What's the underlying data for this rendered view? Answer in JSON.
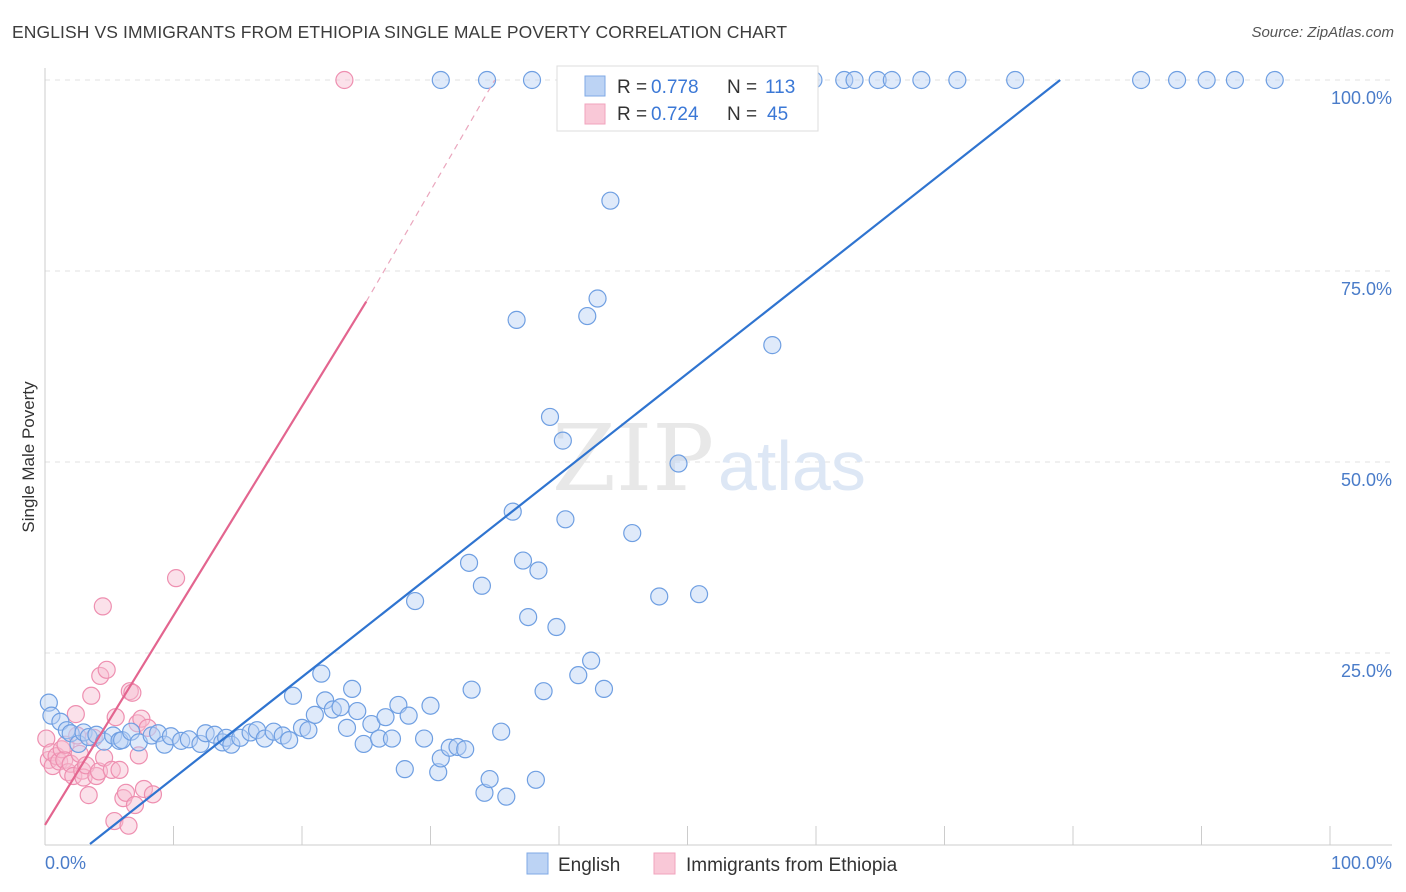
{
  "title": "ENGLISH VS IMMIGRANTS FROM ETHIOPIA SINGLE MALE POVERTY CORRELATION CHART",
  "source": "Source: ZipAtlas.com",
  "watermark": {
    "zip": "ZIP",
    "atlas": "atlas"
  },
  "chart_data": {
    "type": "scatter",
    "ylabel": "Single Male Poverty",
    "xlim": [
      0,
      100
    ],
    "ylim": [
      0,
      100
    ],
    "x_tick_labels": [
      "0.0%",
      "100.0%"
    ],
    "y_tick_labels": [
      "25.0%",
      "50.0%",
      "75.0%",
      "100.0%"
    ],
    "y_ticks": [
      25,
      50,
      75,
      100
    ],
    "grid": true,
    "legend_placement": "bottom-center",
    "stats": [
      {
        "r_label": "R =",
        "r_value": "0.778",
        "n_label": "N =",
        "n_value": "113"
      },
      {
        "r_label": "R =",
        "r_value": "0.724",
        "n_label": "N =",
        "n_value": "45"
      }
    ],
    "series": [
      {
        "name": "English",
        "color": "#7fa9e6",
        "line_color": "#2f74d0",
        "trend": {
          "x": [
            3.5,
            79
          ],
          "y": [
            0,
            100
          ]
        },
        "points": [
          [
            0.3,
            18.5
          ],
          [
            0.5,
            16.8
          ],
          [
            1.2,
            16.0
          ],
          [
            1.7,
            14.9
          ],
          [
            2.0,
            14.5
          ],
          [
            2.6,
            13.1
          ],
          [
            3.0,
            14.6
          ],
          [
            3.4,
            14.0
          ],
          [
            4.0,
            14.3
          ],
          [
            4.6,
            13.4
          ],
          [
            5.3,
            14.2
          ],
          [
            5.8,
            13.5
          ],
          [
            6.0,
            13.6
          ],
          [
            6.7,
            14.7
          ],
          [
            7.3,
            13.3
          ],
          [
            8.3,
            14.2
          ],
          [
            8.8,
            14.5
          ],
          [
            9.3,
            13.0
          ],
          [
            9.8,
            14.1
          ],
          [
            10.6,
            13.5
          ],
          [
            11.2,
            13.7
          ],
          [
            12.1,
            13.1
          ],
          [
            12.5,
            14.5
          ],
          [
            13.2,
            14.3
          ],
          [
            13.8,
            13.3
          ],
          [
            14.1,
            13.9
          ],
          [
            14.5,
            13.0
          ],
          [
            15.2,
            13.9
          ],
          [
            16.0,
            14.6
          ],
          [
            16.5,
            14.9
          ],
          [
            17.1,
            13.8
          ],
          [
            17.8,
            14.7
          ],
          [
            18.5,
            14.2
          ],
          [
            19.0,
            13.6
          ],
          [
            19.3,
            19.4
          ],
          [
            20.0,
            15.2
          ],
          [
            20.5,
            14.9
          ],
          [
            21.0,
            16.9
          ],
          [
            21.5,
            22.3
          ],
          [
            21.8,
            18.8
          ],
          [
            22.4,
            17.6
          ],
          [
            23.0,
            17.9
          ],
          [
            23.5,
            15.2
          ],
          [
            23.9,
            20.3
          ],
          [
            24.3,
            17.4
          ],
          [
            24.8,
            13.1
          ],
          [
            25.4,
            15.7
          ],
          [
            26.0,
            13.8
          ],
          [
            26.5,
            16.6
          ],
          [
            27.0,
            13.8
          ],
          [
            27.5,
            18.2
          ],
          [
            28.0,
            9.8
          ],
          [
            28.3,
            16.8
          ],
          [
            28.8,
            31.8
          ],
          [
            29.5,
            13.8
          ],
          [
            30.0,
            18.1
          ],
          [
            30.6,
            9.4
          ],
          [
            30.8,
            11.2
          ],
          [
            31.5,
            12.6
          ],
          [
            32.1,
            12.7
          ],
          [
            32.7,
            12.4
          ],
          [
            33.0,
            36.8
          ],
          [
            33.2,
            20.2
          ],
          [
            34.0,
            33.8
          ],
          [
            34.2,
            6.7
          ],
          [
            34.6,
            8.5
          ],
          [
            35.5,
            14.7
          ],
          [
            35.9,
            6.2
          ],
          [
            36.4,
            43.5
          ],
          [
            36.7,
            68.6
          ],
          [
            37.2,
            37.1
          ],
          [
            37.6,
            29.7
          ],
          [
            38.2,
            8.4
          ],
          [
            38.4,
            35.8
          ],
          [
            38.8,
            20.0
          ],
          [
            39.3,
            55.9
          ],
          [
            39.8,
            28.4
          ],
          [
            40.3,
            52.8
          ],
          [
            40.5,
            42.5
          ],
          [
            41.5,
            22.1
          ],
          [
            42.2,
            69.1
          ],
          [
            42.5,
            24.0
          ],
          [
            43.0,
            71.4
          ],
          [
            43.5,
            20.3
          ],
          [
            44.0,
            84.2
          ],
          [
            45.7,
            40.7
          ],
          [
            47.8,
            32.4
          ],
          [
            49.3,
            49.8
          ],
          [
            50.9,
            32.7
          ],
          [
            56.6,
            65.3
          ],
          [
            59.8,
            100
          ],
          [
            62.2,
            100
          ],
          [
            64.8,
            100
          ],
          [
            71.0,
            100
          ],
          [
            75.5,
            100
          ],
          [
            85.3,
            100
          ],
          [
            88.1,
            100
          ],
          [
            90.4,
            100
          ],
          [
            92.6,
            100
          ],
          [
            95.7,
            100
          ],
          [
            30.8,
            100
          ],
          [
            34.4,
            100
          ],
          [
            37.9,
            100
          ],
          [
            41.6,
            100
          ],
          [
            45.0,
            100
          ],
          [
            48.3,
            100
          ],
          [
            52.7,
            100
          ],
          [
            53.7,
            100
          ],
          [
            57.3,
            100
          ],
          [
            59.1,
            100
          ],
          [
            63.0,
            100
          ],
          [
            65.9,
            100
          ],
          [
            68.2,
            100
          ]
        ]
      },
      {
        "name": "Immigrants from Ethiopia",
        "color": "#f1a3bd",
        "line_color": "#e3658f",
        "trend": {
          "x": [
            0,
            25
          ],
          "y": [
            2.5,
            71
          ]
        },
        "trend_ext": {
          "x": [
            25,
            35
          ],
          "y": [
            71,
            100
          ]
        },
        "points": [
          [
            0.1,
            13.8
          ],
          [
            0.3,
            11.0
          ],
          [
            0.5,
            12.0
          ],
          [
            0.6,
            10.2
          ],
          [
            0.9,
            11.5
          ],
          [
            1.1,
            10.8
          ],
          [
            1.3,
            12.4
          ],
          [
            1.5,
            11.0
          ],
          [
            1.6,
            13.0
          ],
          [
            1.8,
            9.4
          ],
          [
            2.0,
            10.5
          ],
          [
            2.2,
            8.9
          ],
          [
            2.4,
            17.0
          ],
          [
            2.5,
            14.2
          ],
          [
            2.7,
            11.8
          ],
          [
            2.9,
            9.6
          ],
          [
            3.0,
            8.7
          ],
          [
            3.2,
            10.3
          ],
          [
            3.4,
            6.4
          ],
          [
            3.6,
            19.4
          ],
          [
            3.8,
            13.9
          ],
          [
            4.0,
            8.9
          ],
          [
            4.2,
            9.5
          ],
          [
            4.3,
            22.0
          ],
          [
            4.5,
            31.1
          ],
          [
            4.6,
            11.3
          ],
          [
            4.8,
            22.8
          ],
          [
            5.2,
            9.7
          ],
          [
            5.4,
            3.0
          ],
          [
            5.5,
            16.6
          ],
          [
            5.8,
            9.7
          ],
          [
            6.1,
            6.0
          ],
          [
            6.3,
            6.7
          ],
          [
            6.6,
            20.0
          ],
          [
            6.8,
            19.8
          ],
          [
            7.0,
            5.1
          ],
          [
            7.2,
            15.8
          ],
          [
            7.3,
            11.6
          ],
          [
            7.5,
            16.4
          ],
          [
            7.7,
            7.2
          ],
          [
            8.0,
            15.2
          ],
          [
            8.4,
            6.5
          ],
          [
            10.2,
            34.8
          ],
          [
            23.3,
            100
          ],
          [
            6.5,
            2.4
          ]
        ]
      }
    ]
  }
}
